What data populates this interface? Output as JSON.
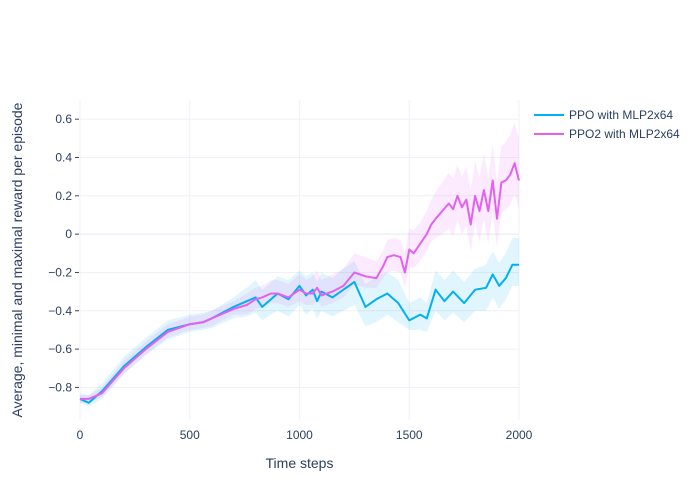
{
  "chart_data": {
    "type": "line",
    "title": "",
    "xlabel": "Time steps",
    "ylabel": "Average, minimal and maximal reward per episode",
    "xlim": [
      0,
      2000
    ],
    "ylim": [
      -0.97,
      0.7
    ],
    "x_ticks": [
      0,
      500,
      1000,
      1500,
      2000
    ],
    "x_tick_labels": [
      "0",
      "500",
      "1000",
      "1500",
      "2000"
    ],
    "y_ticks": [
      0.6,
      0.4,
      0.2,
      0,
      -0.2,
      -0.4,
      -0.6,
      -0.8
    ],
    "y_tick_labels": [
      "0.6",
      "0.4",
      "0.2",
      "0",
      "−0.2",
      "−0.4",
      "−0.6",
      "−0.8"
    ],
    "grid": true,
    "legend_position": "top-right",
    "series": [
      {
        "name": "PPO with MLP2x64",
        "color": "#00b0f0",
        "band_color": "rgba(0,176,240,0.12)",
        "x": [
          0,
          40,
          100,
          200,
          300,
          400,
          500,
          560,
          600,
          700,
          760,
          800,
          830,
          870,
          900,
          950,
          1000,
          1030,
          1060,
          1080,
          1100,
          1150,
          1200,
          1250,
          1300,
          1350,
          1400,
          1450,
          1500,
          1550,
          1580,
          1620,
          1660,
          1700,
          1750,
          1800,
          1850,
          1880,
          1910,
          1940,
          1970,
          2000
        ],
        "values": [
          -0.86,
          -0.88,
          -0.82,
          -0.69,
          -0.59,
          -0.5,
          -0.47,
          -0.46,
          -0.44,
          -0.38,
          -0.35,
          -0.33,
          -0.38,
          -0.34,
          -0.31,
          -0.34,
          -0.27,
          -0.32,
          -0.29,
          -0.35,
          -0.3,
          -0.33,
          -0.29,
          -0.25,
          -0.38,
          -0.34,
          -0.31,
          -0.36,
          -0.45,
          -0.42,
          -0.44,
          -0.29,
          -0.35,
          -0.3,
          -0.36,
          -0.29,
          -0.28,
          -0.21,
          -0.27,
          -0.23,
          -0.16,
          -0.16
        ],
        "min": [
          -0.88,
          -0.9,
          -0.86,
          -0.73,
          -0.63,
          -0.55,
          -0.51,
          -0.5,
          -0.49,
          -0.44,
          -0.43,
          -0.41,
          -0.45,
          -0.42,
          -0.4,
          -0.43,
          -0.37,
          -0.42,
          -0.39,
          -0.44,
          -0.4,
          -0.43,
          -0.4,
          -0.37,
          -0.48,
          -0.46,
          -0.42,
          -0.46,
          -0.5,
          -0.5,
          -0.51,
          -0.4,
          -0.45,
          -0.41,
          -0.46,
          -0.4,
          -0.4,
          -0.33,
          -0.39,
          -0.34,
          -0.27,
          -0.27
        ],
        "max": [
          -0.83,
          -0.84,
          -0.78,
          -0.64,
          -0.54,
          -0.45,
          -0.42,
          -0.41,
          -0.4,
          -0.33,
          -0.28,
          -0.24,
          -0.29,
          -0.25,
          -0.22,
          -0.24,
          -0.19,
          -0.22,
          -0.2,
          -0.25,
          -0.2,
          -0.23,
          -0.18,
          -0.14,
          -0.26,
          -0.22,
          -0.2,
          -0.24,
          -0.36,
          -0.33,
          -0.36,
          -0.19,
          -0.24,
          -0.19,
          -0.25,
          -0.18,
          -0.16,
          -0.09,
          -0.15,
          -0.1,
          -0.02,
          -0.02
        ]
      },
      {
        "name": "PPO2 with MLP2x64",
        "color": "#e361f0",
        "band_color": "rgba(236,110,246,0.14)",
        "x": [
          0,
          40,
          100,
          200,
          300,
          400,
          500,
          560,
          600,
          700,
          760,
          800,
          830,
          870,
          900,
          950,
          1000,
          1030,
          1060,
          1080,
          1100,
          1150,
          1200,
          1250,
          1300,
          1350,
          1380,
          1400,
          1430,
          1460,
          1480,
          1500,
          1520,
          1550,
          1580,
          1600,
          1620,
          1650,
          1680,
          1700,
          1720,
          1740,
          1760,
          1780,
          1800,
          1820,
          1840,
          1860,
          1880,
          1900,
          1920,
          1940,
          1960,
          1980,
          2000
        ],
        "values": [
          -0.86,
          -0.86,
          -0.83,
          -0.7,
          -0.6,
          -0.51,
          -0.47,
          -0.46,
          -0.44,
          -0.39,
          -0.37,
          -0.34,
          -0.33,
          -0.31,
          -0.31,
          -0.33,
          -0.29,
          -0.31,
          -0.31,
          -0.28,
          -0.32,
          -0.3,
          -0.27,
          -0.2,
          -0.22,
          -0.23,
          -0.17,
          -0.12,
          -0.11,
          -0.12,
          -0.2,
          -0.08,
          -0.1,
          -0.05,
          0.0,
          0.05,
          0.08,
          0.12,
          0.16,
          0.13,
          0.2,
          0.14,
          0.18,
          0.05,
          0.2,
          0.12,
          0.23,
          0.12,
          0.28,
          0.08,
          0.27,
          0.28,
          0.31,
          0.37,
          0.28
        ],
        "min": [
          -0.88,
          -0.88,
          -0.85,
          -0.73,
          -0.63,
          -0.54,
          -0.5,
          -0.49,
          -0.48,
          -0.42,
          -0.42,
          -0.39,
          -0.38,
          -0.36,
          -0.36,
          -0.38,
          -0.35,
          -0.37,
          -0.37,
          -0.34,
          -0.38,
          -0.36,
          -0.33,
          -0.26,
          -0.28,
          -0.28,
          -0.23,
          -0.2,
          -0.19,
          -0.2,
          -0.28,
          -0.17,
          -0.18,
          -0.14,
          -0.09,
          -0.04,
          -0.02,
          0.0,
          0.03,
          -0.01,
          0.07,
          0.0,
          0.04,
          -0.09,
          0.06,
          -0.04,
          0.08,
          -0.05,
          0.12,
          -0.07,
          0.11,
          0.13,
          0.15,
          0.21,
          0.13
        ],
        "max": [
          -0.84,
          -0.84,
          -0.8,
          -0.66,
          -0.56,
          -0.47,
          -0.43,
          -0.42,
          -0.4,
          -0.35,
          -0.31,
          -0.28,
          -0.27,
          -0.24,
          -0.24,
          -0.26,
          -0.21,
          -0.24,
          -0.22,
          -0.19,
          -0.24,
          -0.21,
          -0.18,
          -0.1,
          -0.12,
          -0.14,
          -0.09,
          -0.03,
          -0.02,
          -0.03,
          -0.1,
          0.03,
          0.02,
          0.06,
          0.12,
          0.18,
          0.22,
          0.27,
          0.32,
          0.29,
          0.36,
          0.3,
          0.35,
          0.23,
          0.38,
          0.3,
          0.42,
          0.3,
          0.47,
          0.27,
          0.46,
          0.48,
          0.52,
          0.58,
          0.5
        ]
      }
    ]
  }
}
